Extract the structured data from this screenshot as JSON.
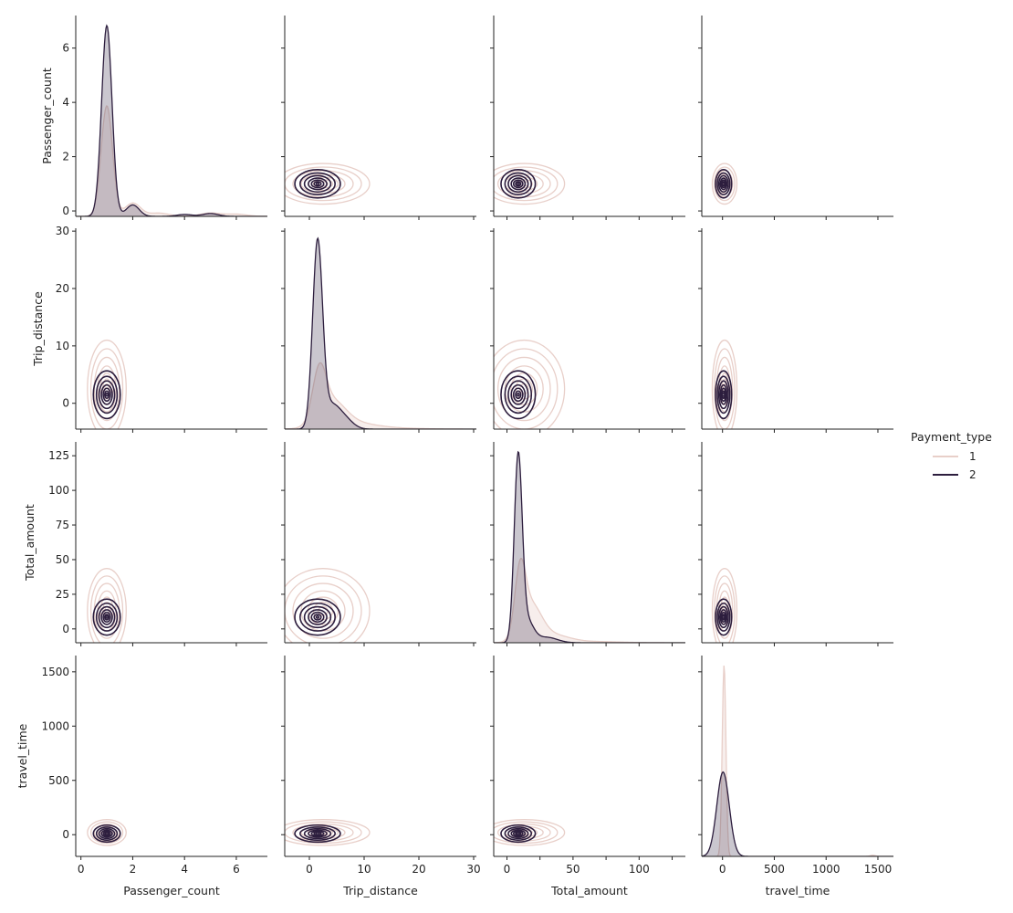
{
  "chart_data": {
    "type": "kde-pairplot",
    "variables": [
      "Passenger_count",
      "Trip_distance",
      "Total_amount",
      "travel_time"
    ],
    "axes": {
      "Passenger_count": {
        "range": [
          -0.2,
          7.2
        ],
        "ticks": [
          0,
          2,
          4,
          6
        ]
      },
      "Trip_distance": {
        "range": [
          -4.5,
          30.5
        ],
        "ticks": [
          0,
          10,
          20,
          30
        ]
      },
      "Total_amount": {
        "range": [
          -10,
          135
        ],
        "ticks": [
          0,
          25,
          50,
          75,
          100,
          125
        ]
      },
      "travel_time": {
        "range": [
          -200,
          1650
        ],
        "ticks": [
          0,
          500,
          1000,
          1500
        ]
      }
    },
    "x_tick_labels": {
      "Passenger_count": [
        0,
        2,
        4,
        6
      ],
      "Trip_distance": [
        0,
        10,
        20,
        30
      ],
      "Total_amount": [
        0,
        50,
        100
      ],
      "travel_time": [
        0,
        500,
        1000,
        1500
      ]
    },
    "legend": {
      "title": "Payment_type",
      "placement": "right",
      "entries": [
        {
          "label": "1",
          "color": "#e8cfc9"
        },
        {
          "label": "2",
          "color": "#2d1e3e"
        }
      ]
    },
    "series": [
      {
        "name": "1",
        "color": "#e8cfc9",
        "modes": {
          "Passenger_count": [
            1,
            0.22
          ],
          "Trip_distance": [
            2.5,
            2.5
          ],
          "Total_amount": [
            13,
            9
          ],
          "travel_time": [
            20,
            35
          ]
        },
        "marginals": {
          "Passenger_count": {
            "peak": 0.55,
            "shape": [
              [
                1,
                0.22,
                1.0
              ],
              [
                2,
                0.3,
                0.12
              ],
              [
                3,
                0.4,
                0.03
              ],
              [
                5,
                0.4,
                0.03
              ],
              [
                6,
                0.4,
                0.02
              ]
            ]
          },
          "Trip_distance": {
            "peak": 0.33,
            "shape": [
              [
                1.8,
                1.2,
                1.0
              ],
              [
                4,
                2.5,
                0.55
              ],
              [
                8,
                4,
                0.12
              ],
              [
                15,
                5,
                0.02
              ]
            ]
          },
          "Total_amount": {
            "peak": 0.42,
            "shape": [
              [
                10,
                4,
                1.0
              ],
              [
                18,
                8,
                0.6
              ],
              [
                35,
                12,
                0.12
              ],
              [
                65,
                20,
                0.02
              ]
            ]
          },
          "travel_time": {
            "peak": 0.95,
            "shape": [
              [
                15,
                18,
                1.0
              ],
              [
                1450,
                25,
                0.006
              ]
            ]
          }
        }
      },
      {
        "name": "2",
        "color": "#2d1e3e",
        "modes": {
          "Passenger_count": [
            1,
            0.2
          ],
          "Trip_distance": [
            1.5,
            1.6
          ],
          "Total_amount": [
            8.5,
            5
          ],
          "travel_time": [
            10,
            30
          ]
        },
        "marginals": {
          "Passenger_count": {
            "peak": 0.95,
            "shape": [
              [
                1,
                0.2,
                1.0
              ],
              [
                2,
                0.25,
                0.06
              ],
              [
                4,
                0.3,
                0.01
              ],
              [
                5,
                0.3,
                0.015
              ]
            ]
          },
          "Trip_distance": {
            "peak": 0.95,
            "shape": [
              [
                1.5,
                0.9,
                1.0
              ],
              [
                4,
                1.5,
                0.12
              ],
              [
                6.5,
                1.5,
                0.05
              ]
            ]
          },
          "Total_amount": {
            "peak": 0.95,
            "shape": [
              [
                8.5,
                3,
                1.0
              ],
              [
                15,
                5,
                0.12
              ],
              [
                30,
                8,
                0.03
              ]
            ]
          },
          "travel_time": {
            "peak": 0.42,
            "shape": [
              [
                5,
                60,
                1.0
              ]
            ]
          }
        }
      }
    ]
  }
}
